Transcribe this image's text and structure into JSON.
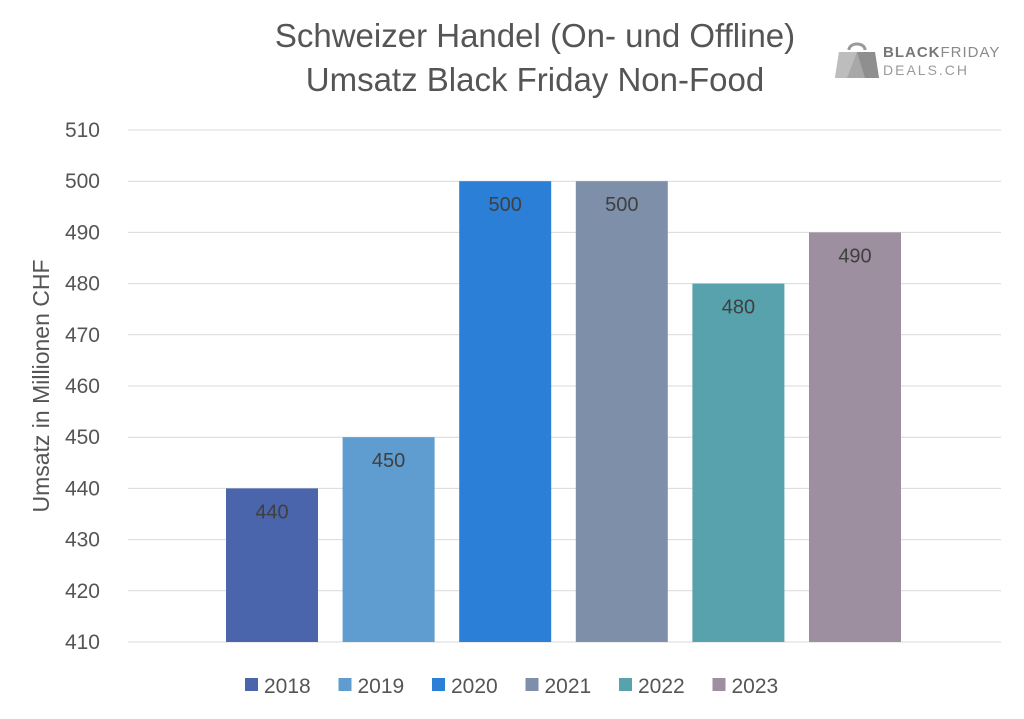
{
  "chart_data": {
    "type": "bar",
    "title": [
      "Schweizer Handel (On- und Offline)",
      "Umsatz Black Friday Non-Food"
    ],
    "ylabel": "Umsatz in Millionen CHF",
    "xlabel": "",
    "ylim": [
      410,
      510
    ],
    "yticks": [
      410,
      420,
      430,
      440,
      450,
      460,
      470,
      480,
      490,
      500,
      510
    ],
    "grid": true,
    "legend": "bottom",
    "categories": [
      "2018",
      "2019",
      "2020",
      "2021",
      "2022",
      "2023"
    ],
    "values": [
      440,
      450,
      500,
      500,
      480,
      490
    ],
    "colors": [
      "#4a65ac",
      "#5f9ccf",
      "#2b7fd6",
      "#7e8faa",
      "#58a2ad",
      "#9d8f9f"
    ]
  },
  "logo": {
    "line1_bold": "BLACK",
    "line1_rest": "FRIDAY",
    "line2": "DEALS.CH",
    "icon": "shopping-bag-icon"
  }
}
